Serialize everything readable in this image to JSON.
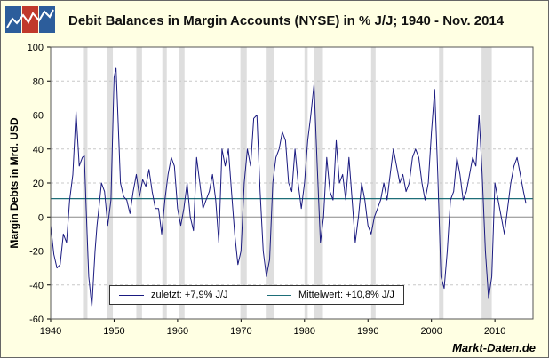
{
  "title": "Debit Balances in Margin Accounts (NYSE) in % J/J; 1940 - Nov. 2014",
  "source": "Markt-Daten.de",
  "colors": {
    "background": "#ffffe3",
    "plot_background": "#ffffff",
    "recession_shade": "#dedede",
    "series": "#1a1a80",
    "mean_line": "#1e6e78",
    "grid": "#c8c8c8",
    "zero_line": "#888888",
    "logo_blue": "#2c5d9b",
    "logo_red": "#c0392b"
  },
  "legend": {
    "items": [
      {
        "label": "zuletzt: +7,9% J/J",
        "color": "#1a1a80"
      },
      {
        "label": "Mittelwert: +10,8% J/J",
        "color": "#1e6e78"
      }
    ],
    "placement": "bottom-center"
  },
  "chart_data": {
    "type": "line",
    "title": "Debit Balances in Margin Accounts (NYSE) in % J/J; 1940 - Nov. 2014",
    "xlabel": "",
    "ylabel": "Margin Debts in Mrd. USD",
    "xlim": [
      1940,
      2016
    ],
    "ylim": [
      -60,
      100
    ],
    "x_ticks": [
      "1940",
      "1950",
      "1960",
      "1970",
      "1980",
      "1990",
      "2000",
      "2010"
    ],
    "y_ticks": [
      "-60",
      "-40",
      "-20",
      "0",
      "20",
      "40",
      "60",
      "80",
      "100"
    ],
    "grid": true,
    "recessions": [
      [
        1945.1,
        1945.8
      ],
      [
        1948.9,
        1949.8
      ],
      [
        1953.5,
        1954.4
      ],
      [
        1957.6,
        1958.3
      ],
      [
        1960.3,
        1961.1
      ],
      [
        1969.9,
        1970.9
      ],
      [
        1973.9,
        1975.2
      ],
      [
        1980.0,
        1980.5
      ],
      [
        1981.5,
        1982.9
      ],
      [
        1990.5,
        1991.2
      ],
      [
        2001.2,
        2001.9
      ],
      [
        2007.9,
        2009.5
      ]
    ],
    "mean_line": 10.8,
    "series": [
      {
        "name": "zuletzt: +7,9% J/J",
        "x": [
          1940,
          1940.5,
          1941,
          1941.5,
          1942,
          1942.5,
          1943,
          1943.5,
          1944,
          1944.5,
          1945,
          1945.3,
          1945.6,
          1946,
          1946.5,
          1947,
          1947.3,
          1947.6,
          1948,
          1948.5,
          1949,
          1949.5,
          1950,
          1950.3,
          1950.6,
          1951,
          1951.5,
          1952,
          1952.5,
          1953,
          1953.5,
          1954,
          1954.5,
          1955,
          1955.5,
          1956,
          1956.5,
          1957,
          1957.5,
          1958,
          1958.5,
          1959,
          1959.5,
          1960,
          1960.5,
          1961,
          1961.5,
          1962,
          1962.5,
          1963,
          1963.5,
          1964,
          1964.5,
          1965,
          1965.5,
          1966,
          1966.5,
          1967,
          1967.5,
          1968,
          1968.5,
          1969,
          1969.5,
          1970,
          1970.5,
          1971,
          1971.5,
          1972,
          1972.5,
          1973,
          1973.5,
          1974,
          1974.5,
          1975,
          1975.5,
          1976,
          1976.5,
          1977,
          1977.5,
          1978,
          1978.5,
          1979,
          1979.5,
          1980,
          1980.5,
          1981,
          1981.5,
          1982,
          1982.5,
          1983,
          1983.5,
          1984,
          1984.5,
          1985,
          1985.5,
          1986,
          1986.5,
          1987,
          1987.5,
          1988,
          1988.5,
          1989,
          1989.5,
          1990,
          1990.5,
          1991,
          1991.5,
          1992,
          1992.5,
          1993,
          1993.5,
          1994,
          1994.5,
          1995,
          1995.5,
          1996,
          1996.5,
          1997,
          1997.5,
          1998,
          1998.5,
          1999,
          1999.5,
          2000,
          2000.5,
          2001,
          2001.5,
          2002,
          2002.5,
          2003,
          2003.5,
          2004,
          2004.5,
          2005,
          2005.5,
          2006,
          2006.5,
          2007,
          2007.5,
          2008,
          2008.5,
          2009,
          2009.5,
          2010,
          2010.5,
          2011,
          2011.5,
          2012,
          2012.5,
          2013,
          2013.5,
          2014,
          2014.5,
          2014.9
        ],
        "values": [
          -5,
          -22,
          -30,
          -28,
          -10,
          -15,
          10,
          25,
          62,
          30,
          35,
          36,
          5,
          -35,
          -53,
          -20,
          -5,
          5,
          20,
          15,
          -5,
          10,
          82,
          88,
          60,
          20,
          12,
          10,
          2,
          15,
          25,
          12,
          22,
          18,
          28,
          15,
          5,
          5,
          -10,
          10,
          25,
          35,
          30,
          5,
          -5,
          5,
          20,
          0,
          -8,
          35,
          20,
          5,
          10,
          15,
          25,
          10,
          -15,
          40,
          30,
          40,
          15,
          -10,
          -28,
          -20,
          20,
          40,
          30,
          58,
          60,
          15,
          -20,
          -35,
          -25,
          20,
          35,
          40,
          50,
          45,
          20,
          15,
          40,
          20,
          5,
          20,
          45,
          60,
          78,
          30,
          -15,
          0,
          35,
          15,
          10,
          45,
          20,
          25,
          10,
          35,
          10,
          -15,
          0,
          20,
          10,
          -5,
          -10,
          0,
          5,
          10,
          20,
          10,
          25,
          40,
          30,
          20,
          25,
          15,
          20,
          35,
          40,
          35,
          20,
          10,
          20,
          50,
          75,
          25,
          -35,
          -42,
          -20,
          10,
          15,
          35,
          25,
          10,
          15,
          25,
          35,
          30,
          60,
          25,
          -20,
          -48,
          -35,
          20,
          10,
          0,
          -10,
          5,
          20,
          30,
          35,
          25,
          15,
          7.9
        ]
      }
    ]
  }
}
